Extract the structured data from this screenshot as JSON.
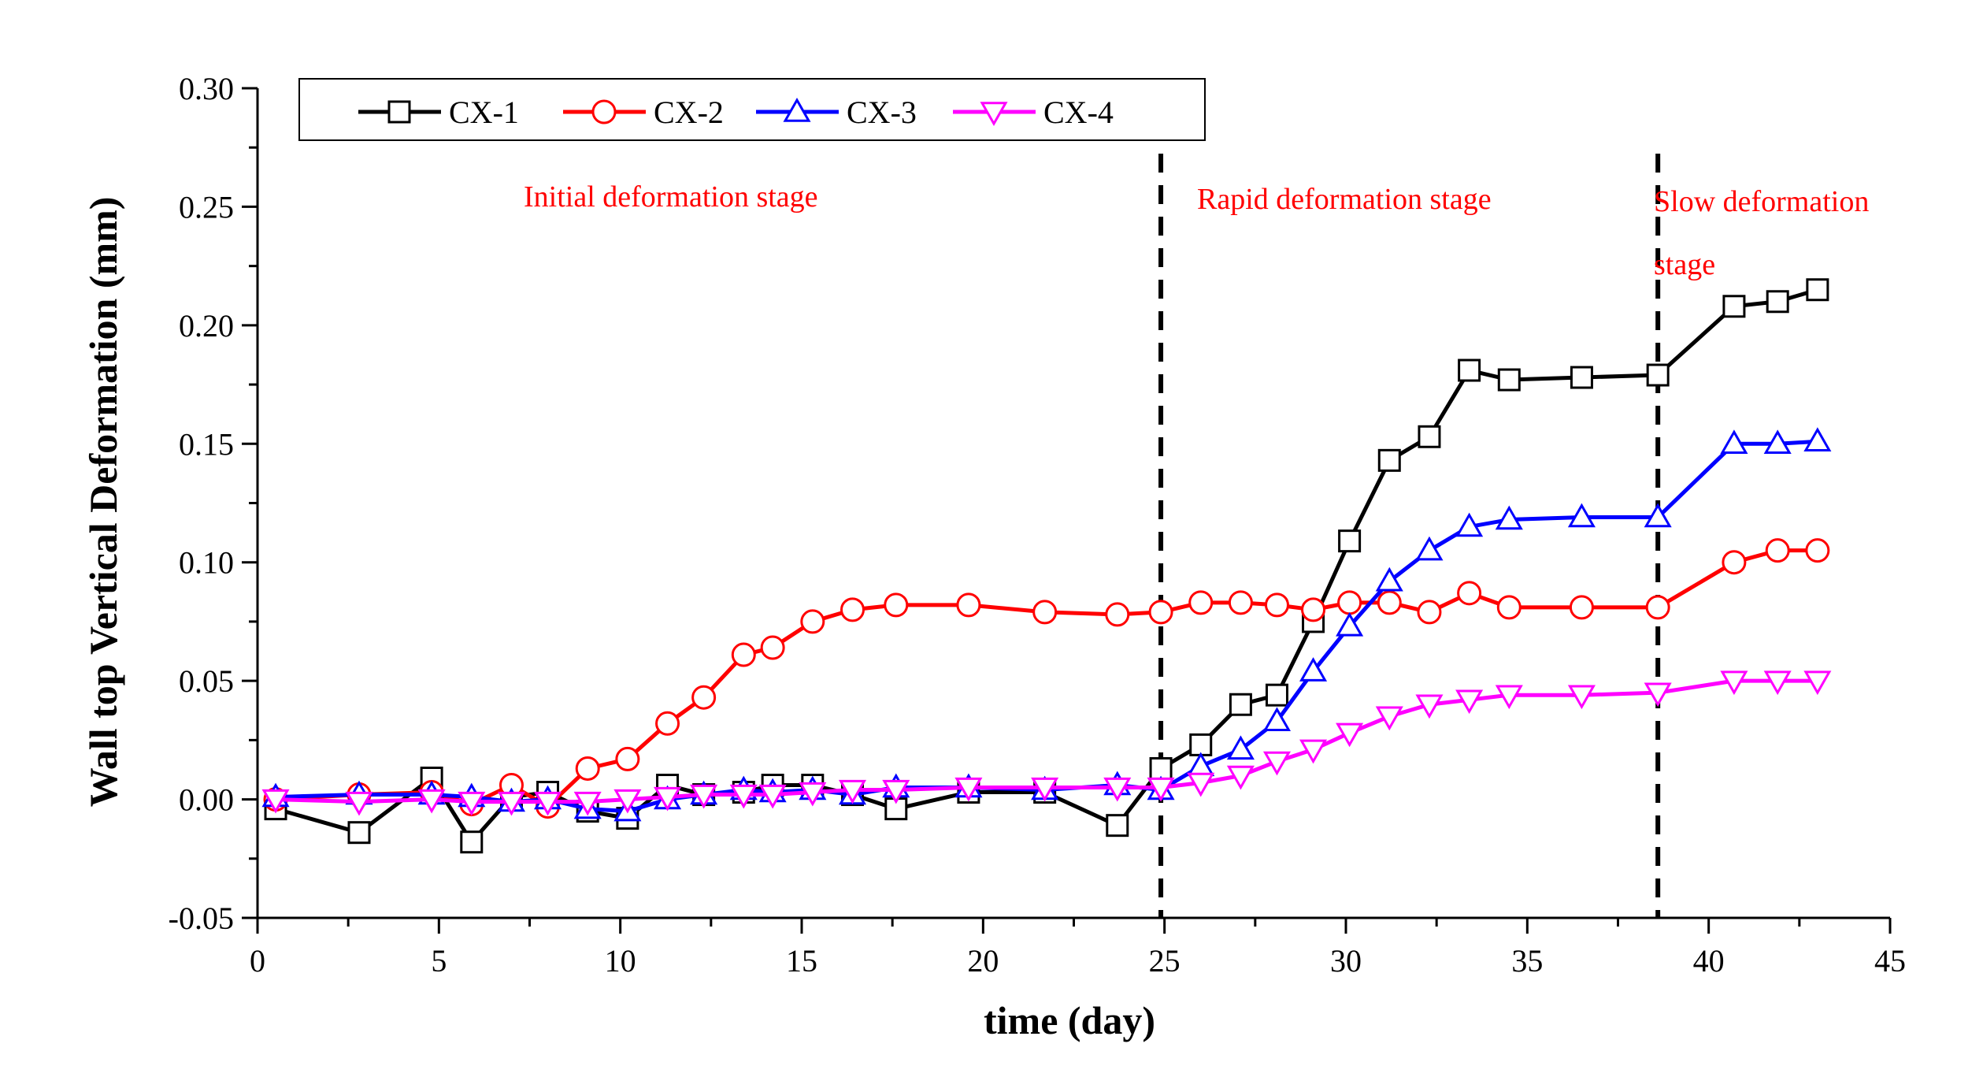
{
  "chart_data": {
    "type": "line",
    "xlabel": "time (day)",
    "ylabel": "Wall top Vertical Deformation (mm)",
    "xlim": [
      0,
      45
    ],
    "ylim": [
      -0.05,
      0.3
    ],
    "xticks": [
      0,
      5,
      10,
      15,
      20,
      25,
      30,
      35,
      40,
      45
    ],
    "yticks": [
      -0.05,
      0.0,
      0.05,
      0.1,
      0.15,
      0.2,
      0.25,
      0.3
    ],
    "xtick_labels": [
      "0",
      "5",
      "10",
      "15",
      "20",
      "25",
      "30",
      "35",
      "40",
      "45"
    ],
    "ytick_labels": [
      "-0.05",
      "0.00",
      "0.05",
      "0.10",
      "0.15",
      "0.20",
      "0.25",
      "0.30"
    ],
    "grid": false,
    "legend_position": "top-left",
    "stage_dividers": [
      24.9,
      38.6
    ],
    "annotations": [
      "Initial deformation stage",
      "Rapid deformation stage",
      "Slow deformation",
      "stage"
    ],
    "series": [
      {
        "name": "CX-1",
        "color": "#000000",
        "marker": "square",
        "x": [
          0.5,
          2.8,
          4.8,
          5.9,
          7.0,
          8.0,
          9.1,
          10.2,
          11.3,
          12.3,
          13.4,
          14.2,
          15.3,
          16.4,
          17.6,
          19.6,
          21.7,
          23.7,
          24.9,
          26.0,
          27.1,
          28.1,
          29.1,
          30.1,
          31.2,
          32.3,
          33.4,
          34.5,
          36.5,
          38.6,
          40.7,
          41.9,
          43.0
        ],
        "y": [
          -0.004,
          -0.014,
          0.009,
          -0.018,
          0.001,
          0.003,
          -0.005,
          -0.008,
          0.006,
          0.002,
          0.003,
          0.006,
          0.006,
          0.002,
          -0.004,
          0.003,
          0.003,
          -0.011,
          0.013,
          0.023,
          0.04,
          0.044,
          0.075,
          0.109,
          0.143,
          0.153,
          0.181,
          0.177,
          0.178,
          0.179,
          0.208,
          0.21,
          0.215
        ]
      },
      {
        "name": "CX-2",
        "color": "#ff0000",
        "marker": "circle",
        "x": [
          0.5,
          2.8,
          4.8,
          5.9,
          7.0,
          8.0,
          9.1,
          10.2,
          11.3,
          12.3,
          13.4,
          14.2,
          15.3,
          16.4,
          17.6,
          19.6,
          21.7,
          23.7,
          24.9,
          26.0,
          27.1,
          28.1,
          29.1,
          30.1,
          31.2,
          32.3,
          33.4,
          34.5,
          36.5,
          38.6,
          40.7,
          41.9,
          43.0
        ],
        "y": [
          0.0,
          0.002,
          0.003,
          -0.002,
          0.006,
          -0.003,
          0.013,
          0.017,
          0.032,
          0.043,
          0.061,
          0.064,
          0.075,
          0.08,
          0.082,
          0.082,
          0.079,
          0.078,
          0.079,
          0.083,
          0.083,
          0.082,
          0.08,
          0.083,
          0.083,
          0.079,
          0.087,
          0.081,
          0.081,
          0.081,
          0.1,
          0.105,
          0.105
        ]
      },
      {
        "name": "CX-3",
        "color": "#0000ff",
        "marker": "triangle-up",
        "x": [
          0.5,
          2.8,
          4.8,
          5.9,
          7.0,
          8.0,
          9.1,
          10.2,
          11.3,
          12.3,
          13.4,
          14.2,
          15.3,
          16.4,
          17.6,
          19.6,
          21.7,
          23.7,
          24.9,
          26.0,
          27.1,
          28.1,
          29.1,
          30.1,
          31.2,
          32.3,
          33.4,
          34.5,
          36.5,
          38.6,
          40.7,
          41.9,
          43.0
        ],
        "y": [
          0.001,
          0.002,
          0.002,
          0.001,
          -0.001,
          0.0,
          -0.004,
          -0.005,
          0.0,
          0.002,
          0.004,
          0.003,
          0.004,
          0.002,
          0.005,
          0.005,
          0.004,
          0.006,
          0.004,
          0.014,
          0.021,
          0.033,
          0.054,
          0.073,
          0.092,
          0.105,
          0.115,
          0.118,
          0.119,
          0.119,
          0.15,
          0.15,
          0.151
        ]
      },
      {
        "name": "CX-4",
        "color": "#ff00ff",
        "marker": "triangle-down",
        "x": [
          0.5,
          2.8,
          4.8,
          5.9,
          7.0,
          8.0,
          9.1,
          10.2,
          11.3,
          12.3,
          13.4,
          14.2,
          15.3,
          16.4,
          17.6,
          19.6,
          21.7,
          23.7,
          24.9,
          26.0,
          27.1,
          28.1,
          29.1,
          30.1,
          31.2,
          32.3,
          33.4,
          34.5,
          36.5,
          38.6,
          40.7,
          41.9,
          43.0
        ],
        "y": [
          0.0,
          -0.001,
          0.0,
          -0.001,
          -0.001,
          -0.001,
          -0.001,
          0.0,
          0.001,
          0.002,
          0.002,
          0.002,
          0.003,
          0.004,
          0.004,
          0.005,
          0.005,
          0.005,
          0.005,
          0.007,
          0.01,
          0.016,
          0.021,
          0.028,
          0.035,
          0.04,
          0.042,
          0.044,
          0.044,
          0.045,
          0.05,
          0.05,
          0.05
        ]
      }
    ]
  }
}
